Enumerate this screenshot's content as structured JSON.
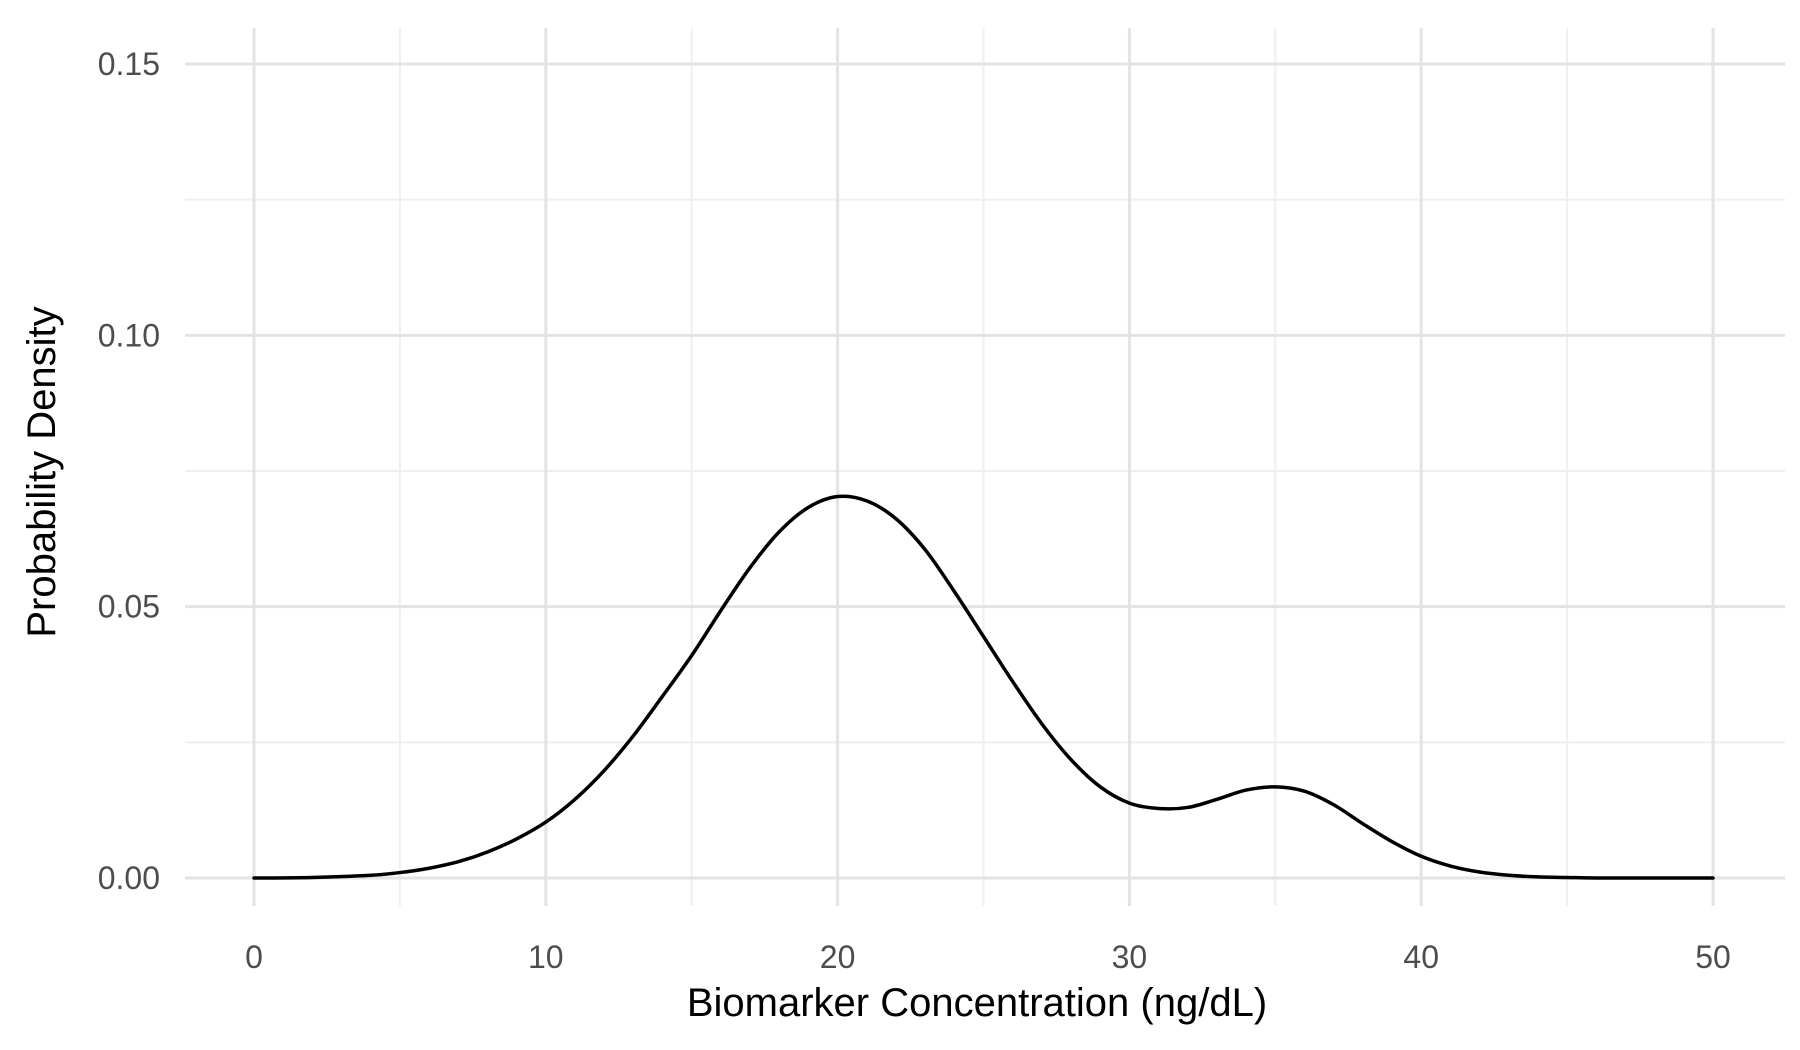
{
  "chart_data": {
    "type": "line",
    "title": "",
    "xlabel": "Biomarker Concentration (ng/dL)",
    "ylabel": "Probability Density",
    "xlim": [
      0,
      50
    ],
    "ylim": [
      0,
      0.15
    ],
    "x_ticks": [
      {
        "value": 0,
        "label": "0"
      },
      {
        "value": 10,
        "label": "10"
      },
      {
        "value": 20,
        "label": "20"
      },
      {
        "value": 30,
        "label": "30"
      },
      {
        "value": 40,
        "label": "40"
      },
      {
        "value": 50,
        "label": "50"
      }
    ],
    "y_ticks": [
      {
        "value": 0,
        "label": "0.00"
      },
      {
        "value": 0.05,
        "label": "0.05"
      },
      {
        "value": 0.1,
        "label": "0.10"
      },
      {
        "value": 0.15,
        "label": "0.15"
      }
    ],
    "x_minor_ticks": [
      5,
      15,
      25,
      35,
      45
    ],
    "y_minor_ticks": [
      0.025,
      0.075,
      0.125
    ],
    "grid": true,
    "legend": "none",
    "line_color": "#000000",
    "grid_color": "#e3e3e3",
    "background_color": "#ffffff",
    "series": [
      {
        "x": [
          0,
          2,
          4,
          5,
          6,
          7,
          8,
          9,
          10,
          11,
          12,
          13,
          14,
          15,
          16,
          17,
          18,
          19,
          20,
          21,
          22,
          23,
          24,
          25,
          26,
          27,
          28,
          29,
          30,
          31,
          32,
          33,
          34,
          35,
          36,
          37,
          38,
          39,
          40,
          41,
          42,
          43,
          44,
          45,
          46,
          48,
          50
        ],
        "y": [
          0.0,
          0.0001,
          0.0005,
          0.001,
          0.0018,
          0.003,
          0.0048,
          0.0072,
          0.0103,
          0.0145,
          0.0198,
          0.0262,
          0.0335,
          0.041,
          0.0493,
          0.0572,
          0.0638,
          0.0683,
          0.0703,
          0.0695,
          0.0662,
          0.0605,
          0.0528,
          0.0445,
          0.0362,
          0.0284,
          0.0218,
          0.0168,
          0.0138,
          0.0128,
          0.013,
          0.0145,
          0.0162,
          0.0168,
          0.016,
          0.0135,
          0.01,
          0.0067,
          0.004,
          0.0022,
          0.0011,
          0.0005,
          0.0002,
          0.0001,
          0.0,
          0.0,
          0.0
        ]
      }
    ]
  }
}
